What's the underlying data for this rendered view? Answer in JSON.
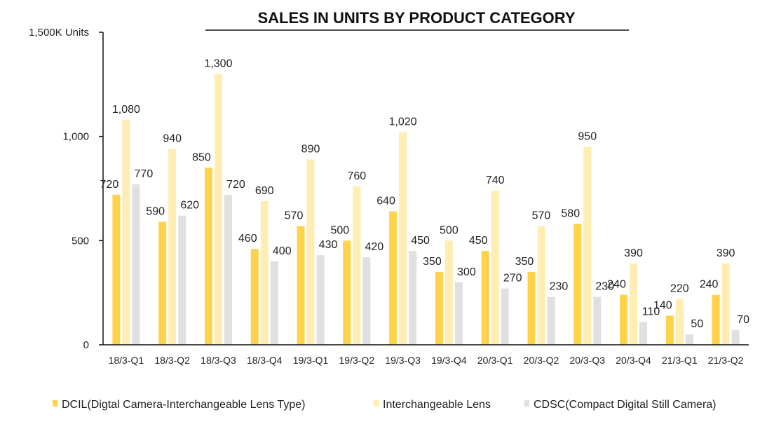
{
  "chart_data": {
    "type": "bar",
    "title": "SALES IN UNITS BY PRODUCT CATEGORY",
    "ylabel": "",
    "xlabel": "",
    "ylim": [
      0,
      1500
    ],
    "yticks": [
      {
        "value": 0,
        "label": "0"
      },
      {
        "value": 500,
        "label": "500"
      },
      {
        "value": 1000,
        "label": "1,000"
      },
      {
        "value": 1500,
        "label": "1,500K Units"
      }
    ],
    "grid": false,
    "legend_position": "bottom",
    "categories": [
      "18/3-Q1",
      "18/3-Q2",
      "18/3-Q3",
      "18/3-Q4",
      "19/3-Q1",
      "19/3-Q2",
      "19/3-Q3",
      "19/3-Q4",
      "20/3-Q1",
      "20/3-Q2",
      "20/3-Q3",
      "20/3-Q4",
      "21/3-Q1",
      "21/3-Q2"
    ],
    "series": [
      {
        "name": "DCIL(Digtal Camera-Interchangeable Lens Type)",
        "color": "#FFD24A",
        "values": [
          720,
          590,
          850,
          460,
          570,
          500,
          640,
          350,
          450,
          350,
          580,
          240,
          140,
          240
        ],
        "labels": [
          "720",
          "590",
          "850",
          "460",
          "570",
          "500",
          "640",
          "350",
          "450",
          "350",
          "580",
          "240",
          "140",
          "240"
        ]
      },
      {
        "name": "Interchangeable Lens",
        "color": "#FFEDB3",
        "values": [
          1080,
          940,
          1300,
          690,
          890,
          760,
          1020,
          500,
          740,
          570,
          950,
          390,
          220,
          390
        ],
        "labels": [
          "1,080",
          "940",
          "1,300",
          "690",
          "890",
          "760",
          "1,020",
          "500",
          "740",
          "570",
          "950",
          "390",
          "220",
          "390"
        ]
      },
      {
        "name": "CDSC(Compact Digital Still Camera)",
        "color": "#E0E0E0",
        "values": [
          770,
          620,
          720,
          400,
          430,
          420,
          450,
          300,
          270,
          230,
          230,
          110,
          50,
          70
        ],
        "labels": [
          "770",
          "620",
          "720",
          "400",
          "430",
          "420",
          "450",
          "300",
          "270",
          "230",
          "230",
          "110",
          "50",
          "70"
        ]
      }
    ]
  }
}
